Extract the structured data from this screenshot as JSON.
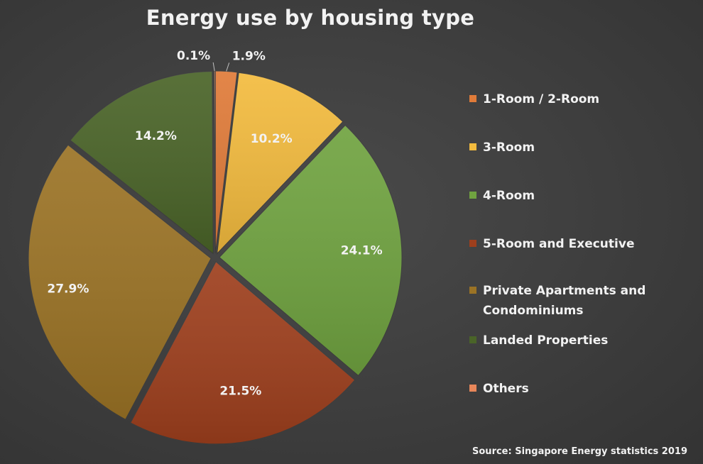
{
  "chart_data": {
    "type": "pie",
    "title": "Energy use by housing type",
    "source": "Source: Singapore Energy statistics 2019",
    "legend_position": "right",
    "slices": [
      {
        "name": "1-Room / 2-Room",
        "value": 1.9,
        "label": "1.9%",
        "color": "#e07b39"
      },
      {
        "name": "3-Room",
        "value": 10.2,
        "label": "10.2%",
        "color": "#f3bb3e"
      },
      {
        "name": "4-Room",
        "value": 24.1,
        "label": "24.1%",
        "color": "#70a340"
      },
      {
        "name": "5-Room and Executive",
        "value": 21.5,
        "label": "21.5%",
        "color": "#9e3f1d"
      },
      {
        "name": "Private Apartments and Condominiums",
        "value": 27.9,
        "label": "27.9%",
        "color": "#9b7325"
      },
      {
        "name": "Landed Properties",
        "value": 14.2,
        "label": "14.2%",
        "color": "#4a6428"
      },
      {
        "name": "Others",
        "value": 0.1,
        "label": "0.1%",
        "color": "#e8875a"
      }
    ]
  }
}
